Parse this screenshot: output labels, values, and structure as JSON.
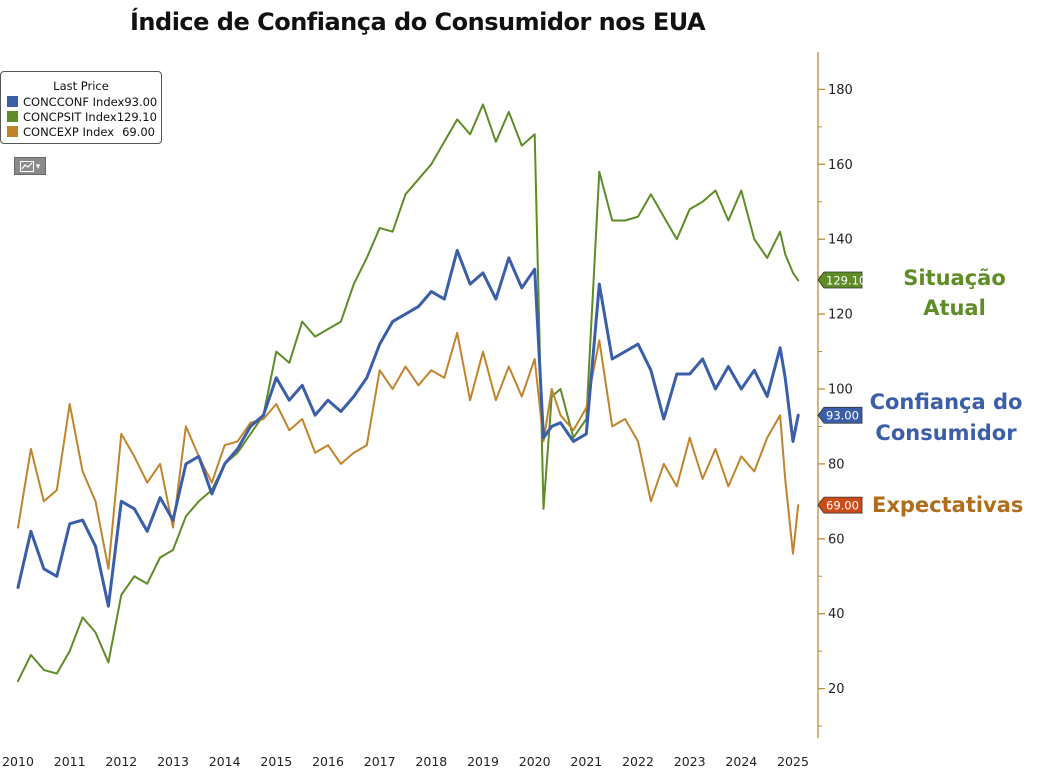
{
  "chart_data": {
    "type": "line",
    "title": "Índice de Confiança do Consumidor nos EUA",
    "legend_header": "Last Price",
    "legend_position": "top-left",
    "x_ticks": [
      "2010",
      "2011",
      "2012",
      "2013",
      "2014",
      "2015",
      "2016",
      "2017",
      "2018",
      "2019",
      "2020",
      "2021",
      "2022",
      "2023",
      "2024",
      "2025"
    ],
    "y_ticks": [
      20,
      40,
      60,
      80,
      100,
      120,
      140,
      160,
      180
    ],
    "ylim": [
      0,
      190
    ],
    "y_axis_side": "right",
    "series": [
      {
        "name": "CONCCONF Index",
        "last_value": "93.00",
        "color": "#3a5ea8",
        "annotation": "Confiança do Consumidor",
        "x": [
          2010.0,
          2010.25,
          2010.5,
          2010.75,
          2011.0,
          2011.25,
          2011.5,
          2011.75,
          2012.0,
          2012.25,
          2012.5,
          2012.75,
          2013.0,
          2013.25,
          2013.5,
          2013.75,
          2014.0,
          2014.25,
          2014.5,
          2014.75,
          2015.0,
          2015.25,
          2015.5,
          2015.75,
          2016.0,
          2016.25,
          2016.5,
          2016.75,
          2017.0,
          2017.25,
          2017.5,
          2017.75,
          2018.0,
          2018.25,
          2018.5,
          2018.75,
          2019.0,
          2019.25,
          2019.5,
          2019.75,
          2020.0,
          2020.17,
          2020.33,
          2020.5,
          2020.75,
          2021.0,
          2021.25,
          2021.5,
          2021.75,
          2022.0,
          2022.25,
          2022.5,
          2022.75,
          2023.0,
          2023.25,
          2023.5,
          2023.75,
          2024.0,
          2024.25,
          2024.5,
          2024.75,
          2024.85,
          2025.0,
          2025.1
        ],
        "values": [
          47,
          62,
          52,
          50,
          64,
          65,
          58,
          42,
          70,
          68,
          62,
          71,
          65,
          80,
          82,
          72,
          80,
          84,
          90,
          93,
          103,
          97,
          101,
          93,
          97,
          94,
          98,
          103,
          112,
          118,
          120,
          122,
          126,
          124,
          137,
          128,
          131,
          124,
          135,
          127,
          132,
          87,
          90,
          91,
          86,
          88,
          128,
          108,
          110,
          112,
          105,
          92,
          104,
          104,
          108,
          100,
          106,
          100,
          105,
          98,
          111,
          103,
          86,
          93
        ]
      },
      {
        "name": "CONCPSIT Index",
        "last_value": "129.10",
        "color": "#5e8c26",
        "annotation": "Situação Atual",
        "x": [
          2010.0,
          2010.25,
          2010.5,
          2010.75,
          2011.0,
          2011.25,
          2011.5,
          2011.75,
          2012.0,
          2012.25,
          2012.5,
          2012.75,
          2013.0,
          2013.25,
          2013.5,
          2013.75,
          2014.0,
          2014.25,
          2014.5,
          2014.75,
          2015.0,
          2015.25,
          2015.5,
          2015.75,
          2016.0,
          2016.25,
          2016.5,
          2016.75,
          2017.0,
          2017.25,
          2017.5,
          2017.75,
          2018.0,
          2018.25,
          2018.5,
          2018.75,
          2019.0,
          2019.25,
          2019.5,
          2019.75,
          2020.0,
          2020.17,
          2020.33,
          2020.5,
          2020.75,
          2021.0,
          2021.25,
          2021.5,
          2021.75,
          2022.0,
          2022.25,
          2022.5,
          2022.75,
          2023.0,
          2023.25,
          2023.5,
          2023.75,
          2024.0,
          2024.25,
          2024.5,
          2024.75,
          2024.85,
          2025.0,
          2025.1
        ],
        "values": [
          22,
          29,
          25,
          24,
          30,
          39,
          35,
          27,
          45,
          50,
          48,
          55,
          57,
          66,
          70,
          73,
          80,
          83,
          88,
          93,
          110,
          107,
          118,
          114,
          116,
          118,
          128,
          135,
          143,
          142,
          152,
          156,
          160,
          166,
          172,
          168,
          176,
          166,
          174,
          165,
          168,
          68,
          98,
          100,
          87,
          92,
          158,
          145,
          145,
          146,
          152,
          146,
          140,
          148,
          150,
          153,
          145,
          153,
          140,
          135,
          142,
          136,
          131,
          129
        ]
      },
      {
        "name": "CONCEXP Index",
        "last_value": "69.00",
        "color": "#c1832b",
        "annotation": "Expectativas",
        "x": [
          2010.0,
          2010.25,
          2010.5,
          2010.75,
          2011.0,
          2011.25,
          2011.5,
          2011.75,
          2012.0,
          2012.25,
          2012.5,
          2012.75,
          2013.0,
          2013.25,
          2013.5,
          2013.75,
          2014.0,
          2014.25,
          2014.5,
          2014.75,
          2015.0,
          2015.25,
          2015.5,
          2015.75,
          2016.0,
          2016.25,
          2016.5,
          2016.75,
          2017.0,
          2017.25,
          2017.5,
          2017.75,
          2018.0,
          2018.25,
          2018.5,
          2018.75,
          2019.0,
          2019.25,
          2019.5,
          2019.75,
          2020.0,
          2020.17,
          2020.33,
          2020.5,
          2020.75,
          2021.0,
          2021.25,
          2021.5,
          2021.75,
          2022.0,
          2022.25,
          2022.5,
          2022.75,
          2023.0,
          2023.25,
          2023.5,
          2023.75,
          2024.0,
          2024.25,
          2024.5,
          2024.75,
          2024.85,
          2025.0,
          2025.1
        ],
        "values": [
          63,
          84,
          70,
          73,
          96,
          78,
          70,
          52,
          88,
          82,
          75,
          80,
          63,
          90,
          82,
          75,
          85,
          86,
          91,
          92,
          96,
          89,
          92,
          83,
          85,
          80,
          83,
          85,
          105,
          100,
          106,
          101,
          105,
          103,
          115,
          97,
          110,
          97,
          106,
          98,
          108,
          86,
          100,
          93,
          89,
          95,
          113,
          90,
          92,
          86,
          70,
          80,
          74,
          87,
          76,
          84,
          74,
          82,
          78,
          87,
          93,
          76,
          56,
          69
        ]
      }
    ]
  },
  "legend": {
    "header": "Last Price",
    "items": [
      {
        "name": "CONCCONF Index",
        "value": "93.00",
        "color": "#3a5ea8"
      },
      {
        "name": "CONCPSIT Index",
        "value": "129.10",
        "color": "#5e8c26"
      },
      {
        "name": "CONCEXP Index",
        "value": "69.00",
        "color": "#c1832b"
      }
    ]
  },
  "tags": [
    {
      "value": "129.10",
      "color": "#5e8c26"
    },
    {
      "value": "93.00",
      "color": "#3a5ea8"
    },
    {
      "value": "69.00",
      "color": "#cc4b1a"
    }
  ],
  "annotations": {
    "situacao": {
      "text": "Situação Atual",
      "color": "#5e8c26"
    },
    "confianca_line1": {
      "text": "Confiança do",
      "color": "#3a5ea8"
    },
    "confianca_line2": {
      "text": "Consumidor",
      "color": "#3a5ea8"
    },
    "expectativas": {
      "text": "Expectativas",
      "color": "#b06e1c"
    }
  },
  "toolbar": {
    "chart_type_icon": "line-chart-icon"
  },
  "colors": {
    "axis": "#c08a3a",
    "tick_text": "#222222"
  }
}
